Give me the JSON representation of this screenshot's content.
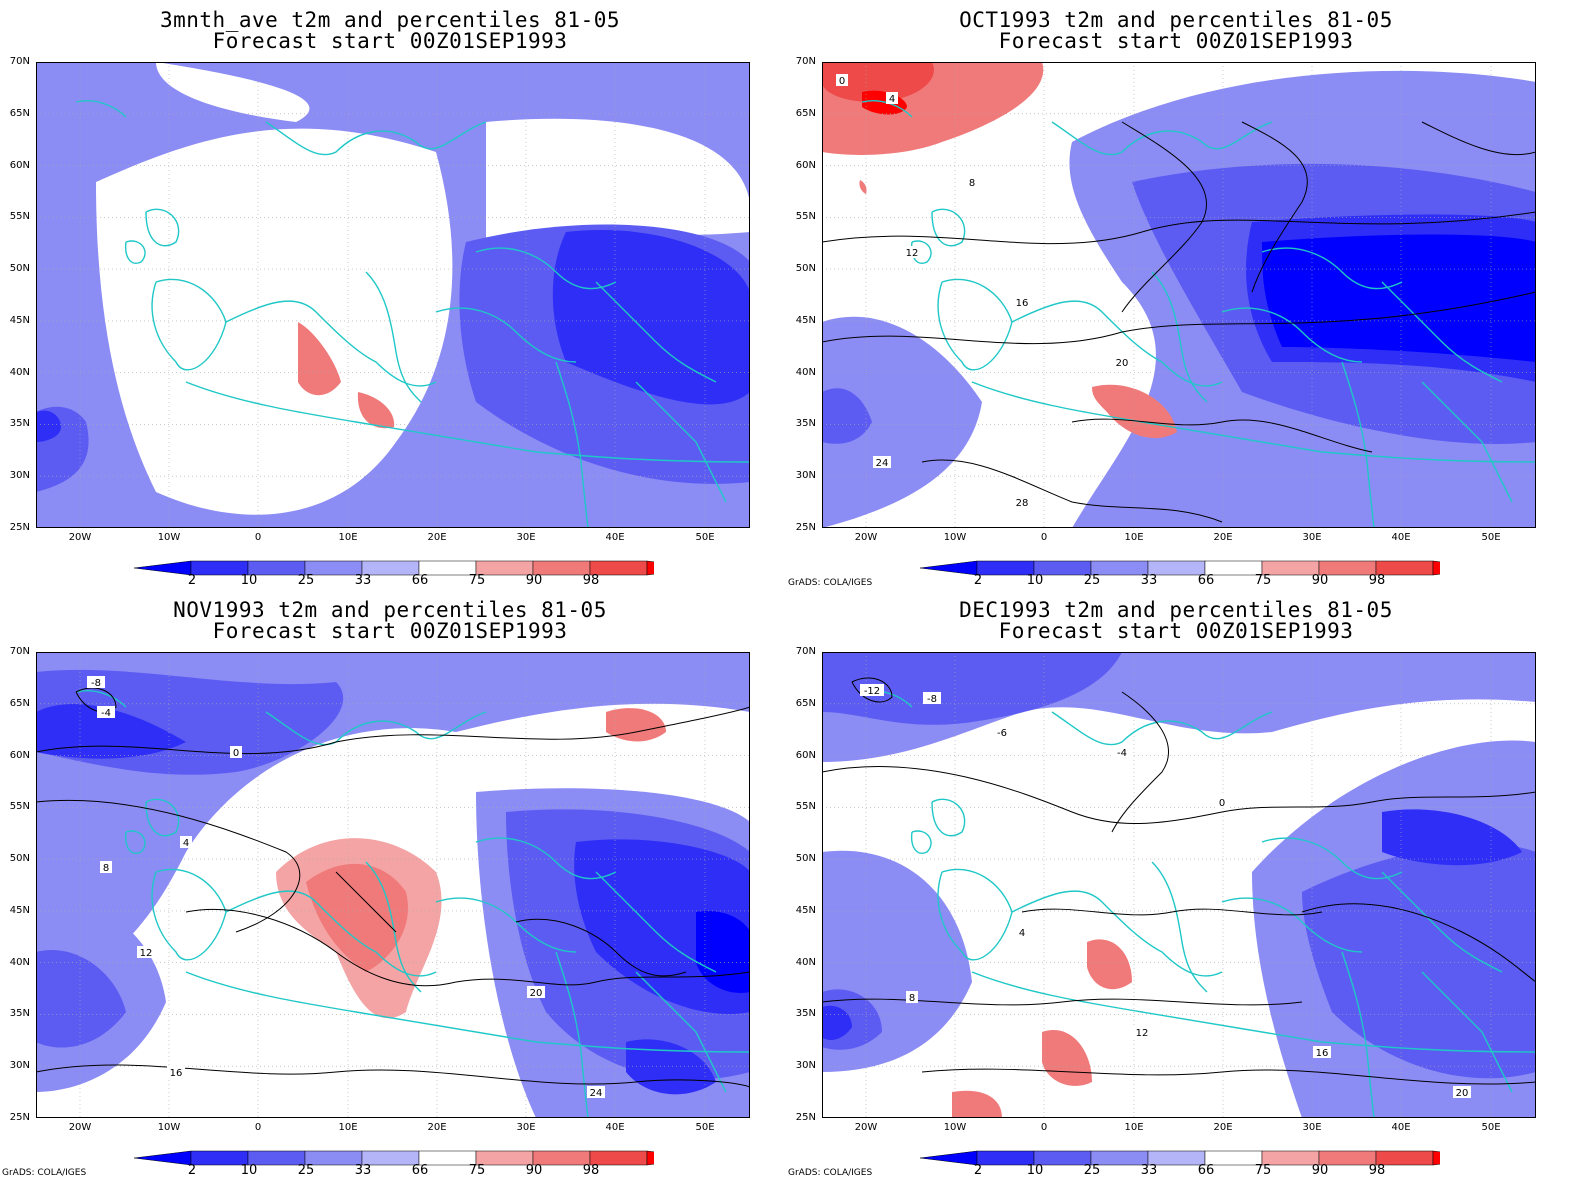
{
  "panels": [
    {
      "title_line1": "3mnth_ave t2m and percentiles 81-05",
      "title_line2": "Forecast start 00Z01SEP1993",
      "has_contours": false,
      "credit": "",
      "contour_labels": []
    },
    {
      "title_line1": "OCT1993 t2m and percentiles 81-05",
      "title_line2": "Forecast start 00Z01SEP1993",
      "has_contours": true,
      "credit": "GrADS: COLA/IGES",
      "contour_labels": [
        "0",
        "4",
        "8",
        "12",
        "16",
        "20",
        "24",
        "28"
      ]
    },
    {
      "title_line1": "NOV1993 t2m and percentiles 81-05",
      "title_line2": "Forecast start 00Z01SEP1993",
      "has_contours": true,
      "credit": "GrADS: COLA/IGES",
      "contour_labels": [
        "-8",
        "-4",
        "0",
        "4",
        "8",
        "12",
        "16",
        "20",
        "24"
      ]
    },
    {
      "title_line1": "DEC1993 t2m and percentiles 81-05",
      "title_line2": "Forecast start 00Z01SEP1993",
      "has_contours": true,
      "credit": "GrADS: COLA/IGES",
      "contour_labels": [
        "-12",
        "-8",
        "-6",
        "-4",
        "0",
        "4",
        "8",
        "12",
        "16",
        "20"
      ]
    }
  ],
  "lat_labels": [
    "70N",
    "65N",
    "60N",
    "55N",
    "50N",
    "45N",
    "40N",
    "35N",
    "30N",
    "25N"
  ],
  "lon_labels": [
    "20W",
    "10W",
    "0",
    "10E",
    "20E",
    "30E",
    "40E",
    "50E"
  ],
  "colorbar": {
    "labels": [
      "2",
      "10",
      "25",
      "33",
      "66",
      "75",
      "90",
      "98"
    ],
    "colors": [
      "#0000ff",
      "#2e2ef6",
      "#5c5cf2",
      "#8c8cf5",
      "#b4b4f8",
      "#ffffff",
      "#f4a4a4",
      "#f07a7a",
      "#ee4a4a",
      "#ff0000"
    ]
  },
  "colors": {
    "coast": "#1fc7c7",
    "contour": "#000000",
    "grid": "#aaaaaa"
  }
}
